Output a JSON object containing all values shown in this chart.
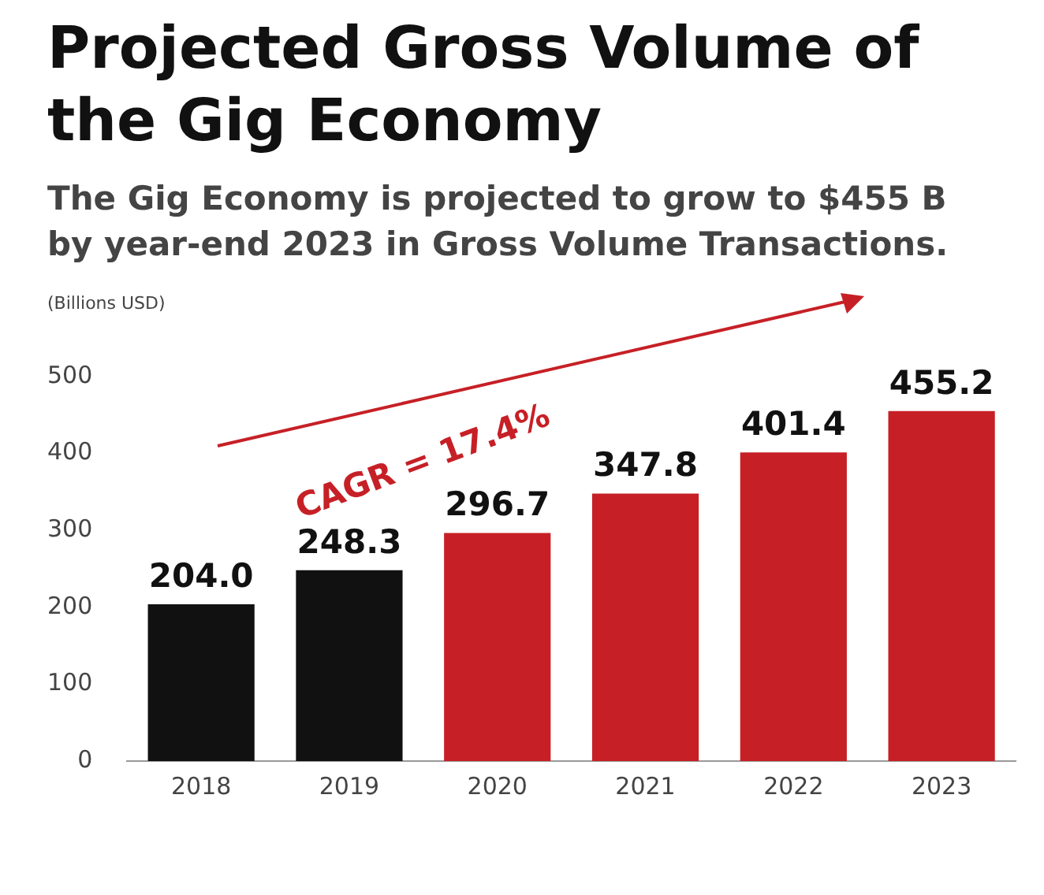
{
  "chart_data": {
    "type": "bar",
    "title": "Projected Gross Volume of the Gig Economy",
    "subtitle": "The Gig Economy is projected to grow to $455 B by year-end 2023 in Gross Volume Transactions.",
    "ylabel": "(Billions USD)",
    "categories": [
      "2018",
      "2019",
      "2020",
      "2021",
      "2022",
      "2023"
    ],
    "values": [
      204.0,
      248.3,
      296.7,
      347.8,
      401.4,
      455.2
    ],
    "colors": [
      "#111111",
      "#111111",
      "#c62026",
      "#c62026",
      "#c62026",
      "#c62026"
    ],
    "value_labels": [
      "204.0",
      "248.3",
      "296.7",
      "347.8",
      "401.4",
      "455.2"
    ],
    "ylim": [
      0,
      500
    ],
    "yticks": [
      0,
      100,
      200,
      300,
      400,
      500
    ],
    "grid": false,
    "legend": false,
    "annotations": [
      "CAGR = 17.4%"
    ]
  }
}
